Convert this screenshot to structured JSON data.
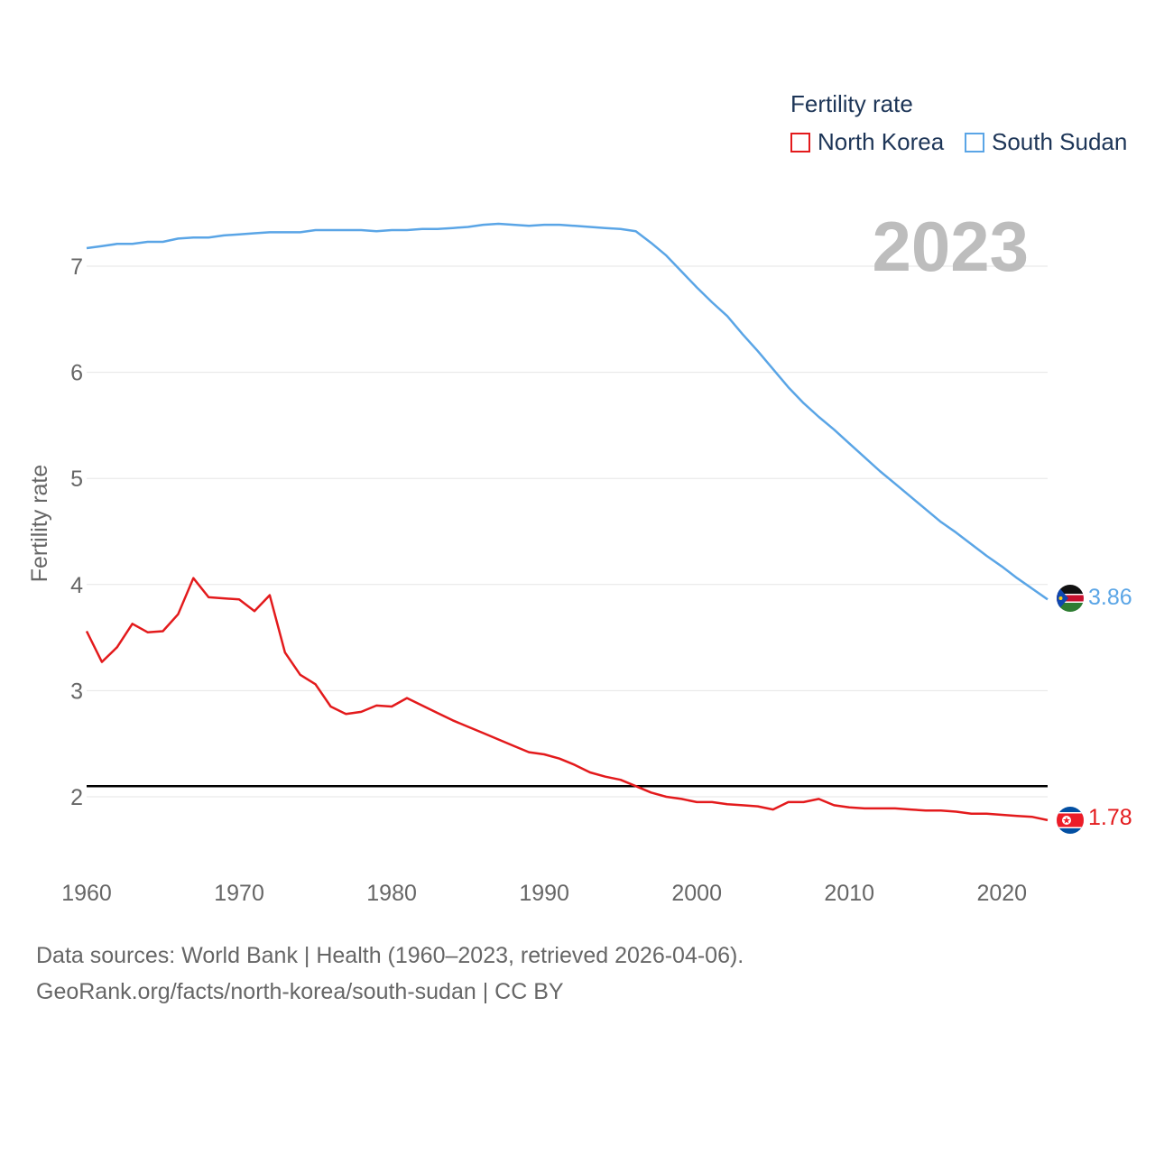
{
  "legend": {
    "title": "Fertility rate",
    "items": [
      {
        "name": "North Korea",
        "color": "#e31a1c"
      },
      {
        "name": "South Sudan",
        "color": "#5aa5e6"
      }
    ]
  },
  "year_display": "2023",
  "source_lines": [
    "Data sources: World Bank | Health (1960–2023, retrieved 2026-04-06).",
    "GeoRank.org/facts/north-korea/south-sudan | CC BY"
  ],
  "end_labels": {
    "north_korea": "1.78",
    "south_sudan": "3.86"
  },
  "chart_data": {
    "type": "line",
    "title": "",
    "xlabel": "",
    "ylabel": "Fertility rate",
    "xlim": [
      1960,
      2023
    ],
    "ylim": [
      1.4,
      7.6
    ],
    "x_ticks": [
      1960,
      1970,
      1980,
      1990,
      2000,
      2010,
      2020
    ],
    "y_ticks": [
      2,
      3,
      4,
      5,
      6,
      7
    ],
    "grid": true,
    "reference_line": {
      "y": 2.1
    },
    "x": [
      1960,
      1961,
      1962,
      1963,
      1964,
      1965,
      1966,
      1967,
      1968,
      1969,
      1970,
      1971,
      1972,
      1973,
      1974,
      1975,
      1976,
      1977,
      1978,
      1979,
      1980,
      1981,
      1982,
      1983,
      1984,
      1985,
      1986,
      1987,
      1988,
      1989,
      1990,
      1991,
      1992,
      1993,
      1994,
      1995,
      1996,
      1997,
      1998,
      1999,
      2000,
      2001,
      2002,
      2003,
      2004,
      2005,
      2006,
      2007,
      2008,
      2009,
      2010,
      2011,
      2012,
      2013,
      2014,
      2015,
      2016,
      2017,
      2018,
      2019,
      2020,
      2021,
      2022,
      2023
    ],
    "series": [
      {
        "name": "North Korea",
        "color": "#e31a1c",
        "values": [
          3.56,
          3.27,
          3.41,
          3.63,
          3.55,
          3.56,
          3.72,
          4.06,
          3.88,
          3.87,
          3.86,
          3.75,
          3.9,
          3.36,
          3.15,
          3.06,
          2.85,
          2.78,
          2.8,
          2.86,
          2.85,
          2.93,
          2.86,
          2.79,
          2.72,
          2.66,
          2.6,
          2.54,
          2.48,
          2.42,
          2.4,
          2.36,
          2.3,
          2.23,
          2.19,
          2.16,
          2.1,
          2.04,
          2.0,
          1.98,
          1.95,
          1.95,
          1.93,
          1.92,
          1.91,
          1.88,
          1.95,
          1.95,
          1.98,
          1.92,
          1.9,
          1.89,
          1.89,
          1.89,
          1.88,
          1.87,
          1.87,
          1.86,
          1.84,
          1.84,
          1.83,
          1.82,
          1.81,
          1.78
        ]
      },
      {
        "name": "South Sudan",
        "color": "#5aa5e6",
        "values": [
          7.17,
          7.19,
          7.21,
          7.21,
          7.23,
          7.23,
          7.26,
          7.27,
          7.27,
          7.29,
          7.3,
          7.31,
          7.32,
          7.32,
          7.32,
          7.34,
          7.34,
          7.34,
          7.34,
          7.33,
          7.34,
          7.34,
          7.35,
          7.35,
          7.36,
          7.37,
          7.39,
          7.4,
          7.39,
          7.38,
          7.39,
          7.39,
          7.38,
          7.37,
          7.36,
          7.35,
          7.33,
          7.22,
          7.1,
          6.95,
          6.8,
          6.66,
          6.53,
          6.36,
          6.2,
          6.03,
          5.86,
          5.71,
          5.58,
          5.46,
          5.33,
          5.2,
          5.07,
          4.95,
          4.83,
          4.71,
          4.59,
          4.49,
          4.38,
          4.27,
          4.17,
          4.06,
          3.96,
          3.86
        ]
      }
    ]
  }
}
